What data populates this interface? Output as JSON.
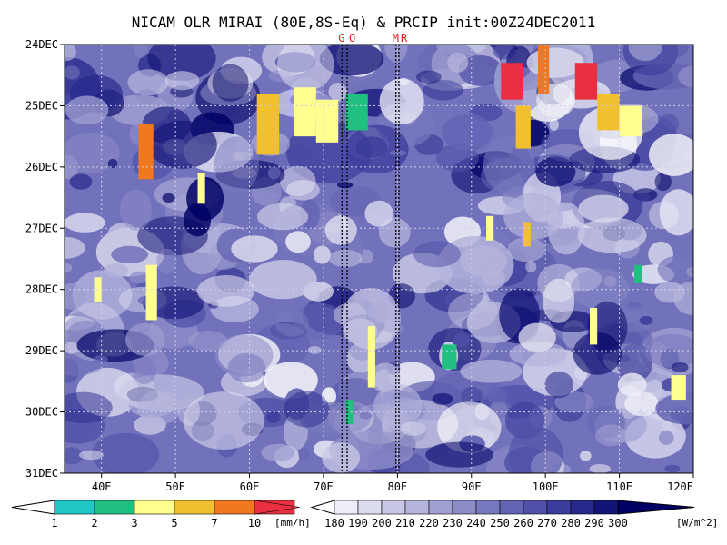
{
  "chart_data": {
    "type": "heatmap",
    "title": "NICAM OLR MIRAI (80E,8S-Eq) & PRCIP init:00Z24DEC2011",
    "x_axis": {
      "range": [
        35,
        120
      ],
      "ticks": [
        40,
        50,
        60,
        70,
        80,
        90,
        100,
        110,
        120
      ],
      "tick_labels": [
        "40E",
        "50E",
        "60E",
        "70E",
        "80E",
        "90E",
        "100E",
        "110E",
        "120E"
      ]
    },
    "y_axis": {
      "range": [
        "24DEC",
        "31DEC"
      ],
      "tick_labels": [
        "24DEC",
        "25DEC",
        "26DEC",
        "27DEC",
        "28DEC",
        "29DEC",
        "30DEC",
        "31DEC"
      ],
      "direction": "time increases downward"
    },
    "grid": true,
    "markers": [
      {
        "label": "G",
        "lon": 72.5
      },
      {
        "label": "O",
        "lon": 73.2
      },
      {
        "label": "M",
        "lon": 79.8
      },
      {
        "label": "R",
        "lon": 80.2
      }
    ],
    "marker_text": [
      "G",
      "O",
      "M",
      "R"
    ],
    "precip_colorbar": {
      "levels": [
        "1",
        "2",
        "3",
        "5",
        "7",
        "10"
      ],
      "units": "[mm/h]",
      "colors": [
        "#20c8c8",
        "#20c080",
        "#ffff90",
        "#f0c030",
        "#f07820",
        "#e83040"
      ]
    },
    "olr_colorbar": {
      "levels": [
        "180",
        "190",
        "200",
        "210",
        "220",
        "230",
        "240",
        "250",
        "260",
        "270",
        "280",
        "290",
        "300"
      ],
      "units": "[W/m^2]",
      "colors": [
        "#ffffff",
        "#eeeef8",
        "#dcdcf0",
        "#c8c8e6",
        "#b4b4dc",
        "#a0a0d2",
        "#8c8cc8",
        "#7878be",
        "#6464b4",
        "#5050a8",
        "#3c3c9c",
        "#28288c",
        "#141478",
        "#000064"
      ]
    },
    "precip_features": [
      {
        "x0": 45,
        "x1": 47,
        "y0": 25.3,
        "y1": 26.2,
        "v": 7
      },
      {
        "x0": 46,
        "x1": 47.5,
        "y0": 27.6,
        "y1": 28.5,
        "v": 3
      },
      {
        "x0": 61,
        "x1": 64,
        "y0": 24.8,
        "y1": 25.8,
        "v": 5
      },
      {
        "x0": 66,
        "x1": 69,
        "y0": 24.7,
        "y1": 25.5,
        "v": 3
      },
      {
        "x0": 69,
        "x1": 72,
        "y0": 24.9,
        "y1": 25.6,
        "v": 3
      },
      {
        "x0": 73,
        "x1": 76,
        "y0": 24.8,
        "y1": 25.4,
        "v": 2
      },
      {
        "x0": 94,
        "x1": 97,
        "y0": 24.3,
        "y1": 24.9,
        "v": 10
      },
      {
        "x0": 96,
        "x1": 98,
        "y0": 25.0,
        "y1": 25.7,
        "v": 5
      },
      {
        "x0": 99,
        "x1": 100.5,
        "y0": 24.0,
        "y1": 24.8,
        "v": 7
      },
      {
        "x0": 104,
        "x1": 107,
        "y0": 24.3,
        "y1": 24.9,
        "v": 10
      },
      {
        "x0": 107,
        "x1": 110,
        "y0": 24.8,
        "y1": 25.4,
        "v": 5
      },
      {
        "x0": 110,
        "x1": 113,
        "y0": 25.0,
        "y1": 25.5,
        "v": 3
      },
      {
        "x0": 92,
        "x1": 93,
        "y0": 26.8,
        "y1": 27.2,
        "v": 3
      },
      {
        "x0": 97,
        "x1": 98,
        "y0": 26.9,
        "y1": 27.3,
        "v": 5
      },
      {
        "x0": 76,
        "x1": 77,
        "y0": 28.6,
        "y1": 29.6,
        "v": 3
      },
      {
        "x0": 73,
        "x1": 74,
        "y0": 29.8,
        "y1": 30.2,
        "v": 2
      },
      {
        "x0": 106,
        "x1": 107,
        "y0": 28.3,
        "y1": 28.9,
        "v": 3
      },
      {
        "x0": 117,
        "x1": 119,
        "y0": 29.4,
        "y1": 29.8,
        "v": 3
      },
      {
        "x0": 39,
        "x1": 40,
        "y0": 27.8,
        "y1": 28.2,
        "v": 3
      },
      {
        "x0": 53,
        "x1": 54,
        "y0": 26.1,
        "y1": 26.6,
        "v": 3
      },
      {
        "x0": 86,
        "x1": 88,
        "y0": 28.9,
        "y1": 29.3,
        "v": 2
      },
      {
        "x0": 112,
        "x1": 113,
        "y0": 27.6,
        "y1": 27.9,
        "v": 2
      }
    ]
  }
}
